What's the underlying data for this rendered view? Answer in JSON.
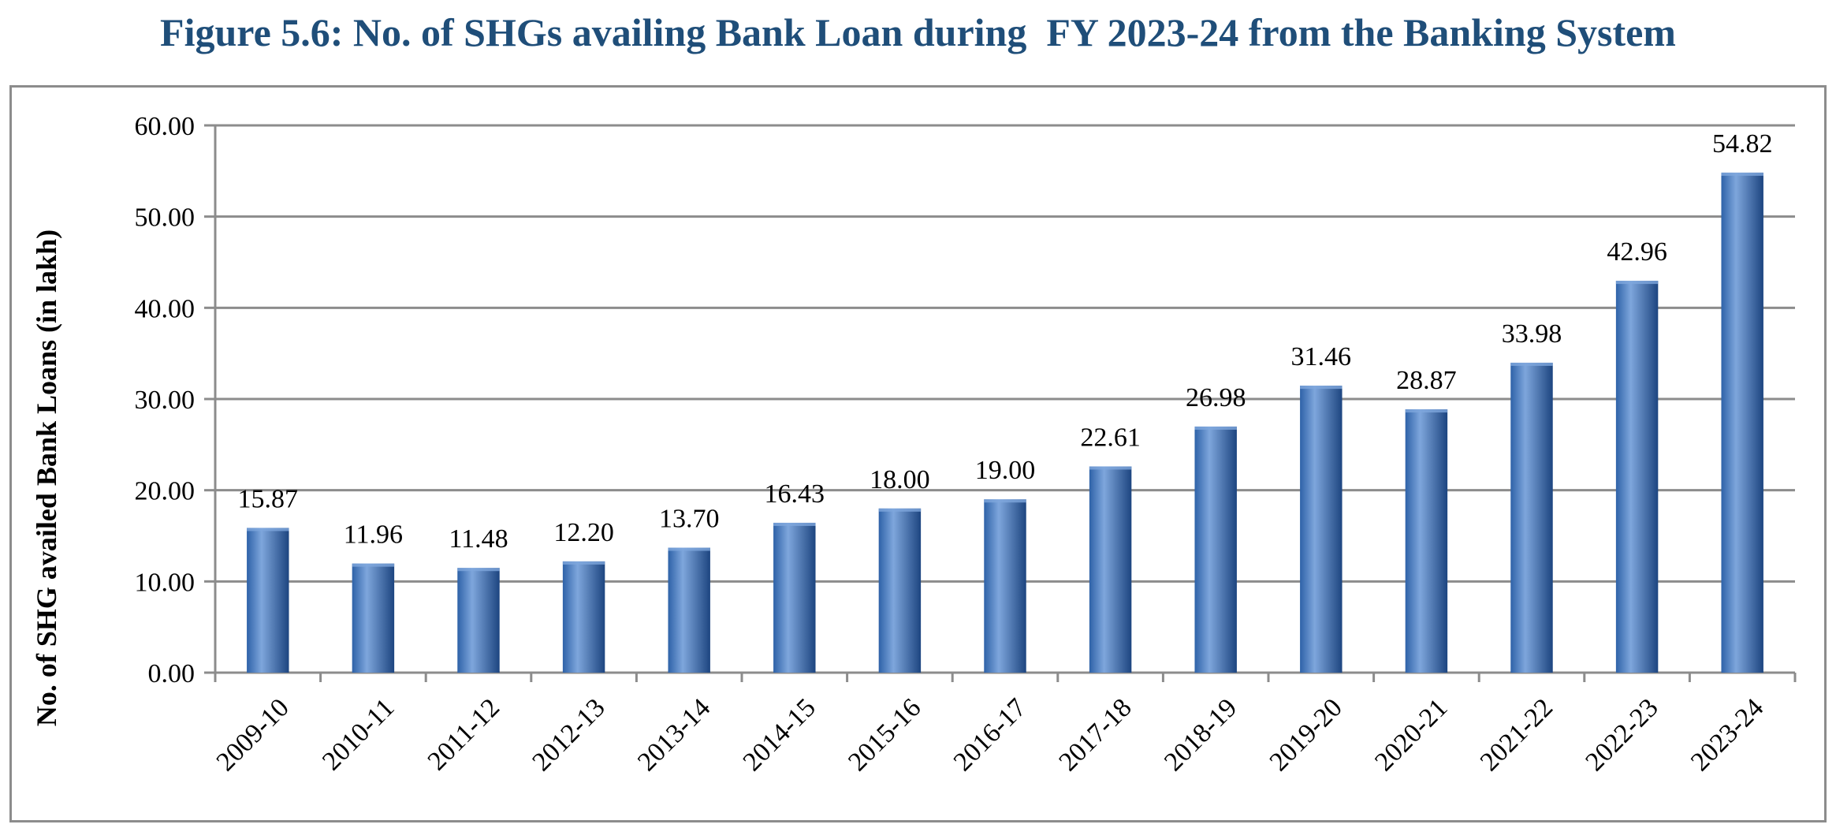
{
  "title": "Figure 5.6: No. of SHGs availing Bank Loan during  FY 2023-24 from the Banking System",
  "colors": {
    "title": "#1f4e79",
    "bar": "#2e62a8",
    "bar_highlight": "#7ea6dc",
    "bar_dark": "#1d4580",
    "grid": "#8c8c8c",
    "frame": "#8c8c8c"
  },
  "chart_data": {
    "type": "bar",
    "categories": [
      "2009-10",
      "2010-11",
      "2011-12",
      "2012-13",
      "2013-14",
      "2014-15",
      "2015-16",
      "2016-17",
      "2017-18",
      "2018-19",
      "2019-20",
      "2020-21",
      "2021-22",
      "2022-23",
      "2023-24"
    ],
    "values": [
      15.87,
      11.96,
      11.48,
      12.2,
      13.7,
      16.43,
      18.0,
      19.0,
      22.61,
      26.98,
      31.46,
      28.87,
      33.98,
      42.96,
      54.82
    ],
    "data_labels": [
      "15.87",
      "11.96",
      "11.48",
      "12.20",
      "13.70",
      "16.43",
      "18.00",
      "19.00",
      "22.61",
      "26.98",
      "31.46",
      "28.87",
      "33.98",
      "42.96",
      "54.82"
    ],
    "y_ticks": [
      0,
      10,
      20,
      30,
      40,
      50,
      60
    ],
    "y_tick_labels": [
      "0.00",
      "10.00",
      "20.00",
      "30.00",
      "40.00",
      "50.00",
      "60.00"
    ],
    "ylim": [
      0,
      60
    ],
    "ylabel": "No. of SHG availed Bank Loans (in lakh)",
    "xlabel": "",
    "grid": true,
    "legend": false
  }
}
